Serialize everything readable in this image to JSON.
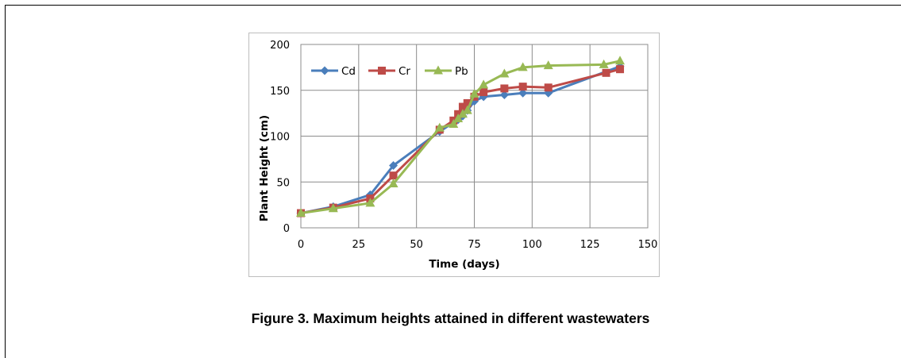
{
  "caption": "Figure 3. Maximum heights attained in different wastewaters",
  "chart_data": {
    "type": "line",
    "title": "",
    "xlabel": "Time (days)",
    "ylabel": "Plant Height (cm)",
    "xlim": [
      0,
      150
    ],
    "ylim": [
      0,
      200
    ],
    "xticks": [
      0,
      25,
      50,
      75,
      100,
      125,
      150
    ],
    "yticks": [
      0,
      50,
      100,
      150,
      200
    ],
    "grid": true,
    "legend_position": "top-left",
    "series": [
      {
        "name": "Cd",
        "color": "#4a7ebb",
        "marker": "diamond",
        "x": [
          0,
          14,
          30,
          40,
          60,
          66,
          68,
          70,
          72,
          75,
          79,
          88,
          96,
          107,
          138
        ],
        "y": [
          16,
          23,
          36,
          68,
          105,
          115,
          118,
          122,
          128,
          138,
          143,
          145,
          147,
          147,
          176
        ]
      },
      {
        "name": "Cr",
        "color": "#be4b48",
        "marker": "square",
        "x": [
          0,
          14,
          30,
          40,
          60,
          66,
          68,
          70,
          72,
          75,
          79,
          88,
          96,
          107,
          132,
          138
        ],
        "y": [
          16,
          22,
          32,
          57,
          107,
          117,
          124,
          132,
          136,
          143,
          148,
          152,
          154,
          153,
          169,
          173
        ]
      },
      {
        "name": "Pb",
        "color": "#98b954",
        "marker": "triangle",
        "x": [
          0,
          14,
          30,
          40,
          60,
          66,
          68,
          70,
          72,
          75,
          79,
          88,
          96,
          107,
          131,
          138
        ],
        "y": [
          16,
          21,
          27,
          48,
          109,
          113,
          119,
          124,
          128,
          146,
          156,
          168,
          175,
          177,
          178,
          182
        ]
      }
    ]
  }
}
